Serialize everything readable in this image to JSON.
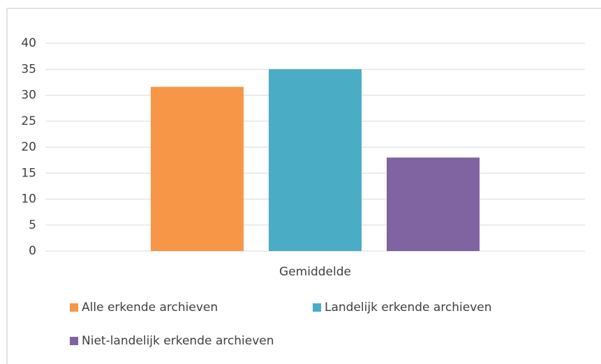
{
  "chart_data": {
    "type": "bar",
    "categories": [
      "Gemiddelde"
    ],
    "series": [
      {
        "name": "Alle erkende archieven",
        "color": "#f79646",
        "values": [
          31.6
        ]
      },
      {
        "name": "Landelijk erkende archieven",
        "color": "#4bacc6",
        "values": [
          35
        ]
      },
      {
        "name": "Niet-landelijk erkende archieven",
        "color": "#8064a2",
        "values": [
          18
        ]
      }
    ],
    "ylim": [
      0,
      40
    ],
    "yticks": [
      0,
      5,
      10,
      15,
      20,
      25,
      30,
      35,
      40
    ],
    "grid": true,
    "legend": "bottom"
  }
}
